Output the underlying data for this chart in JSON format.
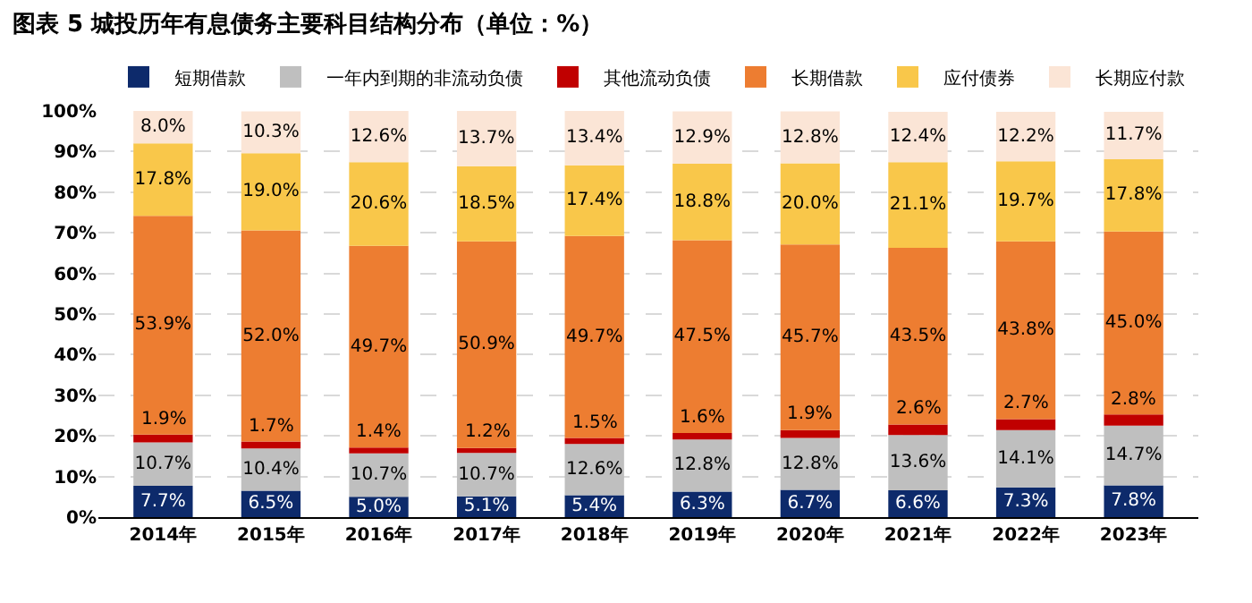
{
  "chart_data": {
    "type": "bar",
    "stacked": true,
    "title": "图表 5 城投历年有息债务主要科目结构分布（单位：%）",
    "categories": [
      "2014年",
      "2015年",
      "2016年",
      "2017年",
      "2018年",
      "2019年",
      "2020年",
      "2021年",
      "2022年",
      "2023年"
    ],
    "series": [
      {
        "name": "短期借款",
        "color": "#0d2a6b",
        "values": [
          7.7,
          6.5,
          5.0,
          5.1,
          5.4,
          6.3,
          6.7,
          6.6,
          7.3,
          7.8
        ],
        "value_labels": [
          "7.7%",
          "6.5%",
          "5.0%",
          "5.1%",
          "5.4%",
          "6.3%",
          "6.7%",
          "6.6%",
          "7.3%",
          "7.8%"
        ]
      },
      {
        "name": "一年内到期的非流动负债",
        "color": "#bfbfbf",
        "values": [
          10.7,
          10.4,
          10.7,
          10.7,
          12.6,
          12.8,
          12.8,
          13.6,
          14.1,
          14.7
        ],
        "value_labels": [
          "10.7%",
          "10.4%",
          "10.7%",
          "10.7%",
          "12.6%",
          "12.8%",
          "12.8%",
          "13.6%",
          "14.1%",
          "14.7%"
        ]
      },
      {
        "name": "其他流动负债",
        "color": "#c00000",
        "values": [
          1.9,
          1.7,
          1.4,
          1.2,
          1.5,
          1.6,
          1.9,
          2.6,
          2.7,
          2.8
        ],
        "value_labels": [
          "1.9%",
          "1.7%",
          "1.4%",
          "1.2%",
          "1.5%",
          "1.6%",
          "1.9%",
          "2.6%",
          "2.7%",
          "2.8%"
        ]
      },
      {
        "name": "长期借款",
        "color": "#ed7d31",
        "values": [
          53.9,
          52.0,
          49.7,
          50.9,
          49.7,
          47.5,
          45.7,
          43.5,
          43.8,
          45.0
        ],
        "value_labels": [
          "53.9%",
          "52.0%",
          "49.7%",
          "50.9%",
          "49.7%",
          "47.5%",
          "45.7%",
          "43.5%",
          "43.8%",
          "45.0%"
        ]
      },
      {
        "name": "应付债券",
        "color": "#f9c74a",
        "values": [
          17.8,
          19.0,
          20.6,
          18.5,
          17.4,
          18.8,
          20.0,
          21.1,
          19.7,
          17.8
        ],
        "value_labels": [
          "17.8%",
          "19.0%",
          "20.6%",
          "18.5%",
          "17.4%",
          "18.8%",
          "20.0%",
          "21.1%",
          "19.7%",
          "17.8%"
        ]
      },
      {
        "name": "长期应付款",
        "color": "#fbe5d6",
        "values": [
          8.0,
          10.3,
          12.6,
          13.7,
          13.4,
          12.9,
          12.8,
          12.4,
          12.2,
          11.7
        ],
        "value_labels": [
          "8.0%",
          "10.3%",
          "12.6%",
          "13.7%",
          "13.4%",
          "12.9%",
          "12.8%",
          "12.4%",
          "12.2%",
          "11.7%"
        ]
      }
    ],
    "ylim": [
      0,
      100
    ],
    "yticks": [
      {
        "value": 0,
        "label": "0%"
      },
      {
        "value": 10,
        "label": "10%"
      },
      {
        "value": 20,
        "label": "20%"
      },
      {
        "value": 30,
        "label": "30%"
      },
      {
        "value": 40,
        "label": "40%"
      },
      {
        "value": 50,
        "label": "50%"
      },
      {
        "value": 60,
        "label": "60%"
      },
      {
        "value": 70,
        "label": "70%"
      },
      {
        "value": 80,
        "label": "80%"
      },
      {
        "value": 90,
        "label": "90%"
      },
      {
        "value": 100,
        "label": "100%"
      }
    ],
    "grid": "y",
    "legend": "top"
  }
}
